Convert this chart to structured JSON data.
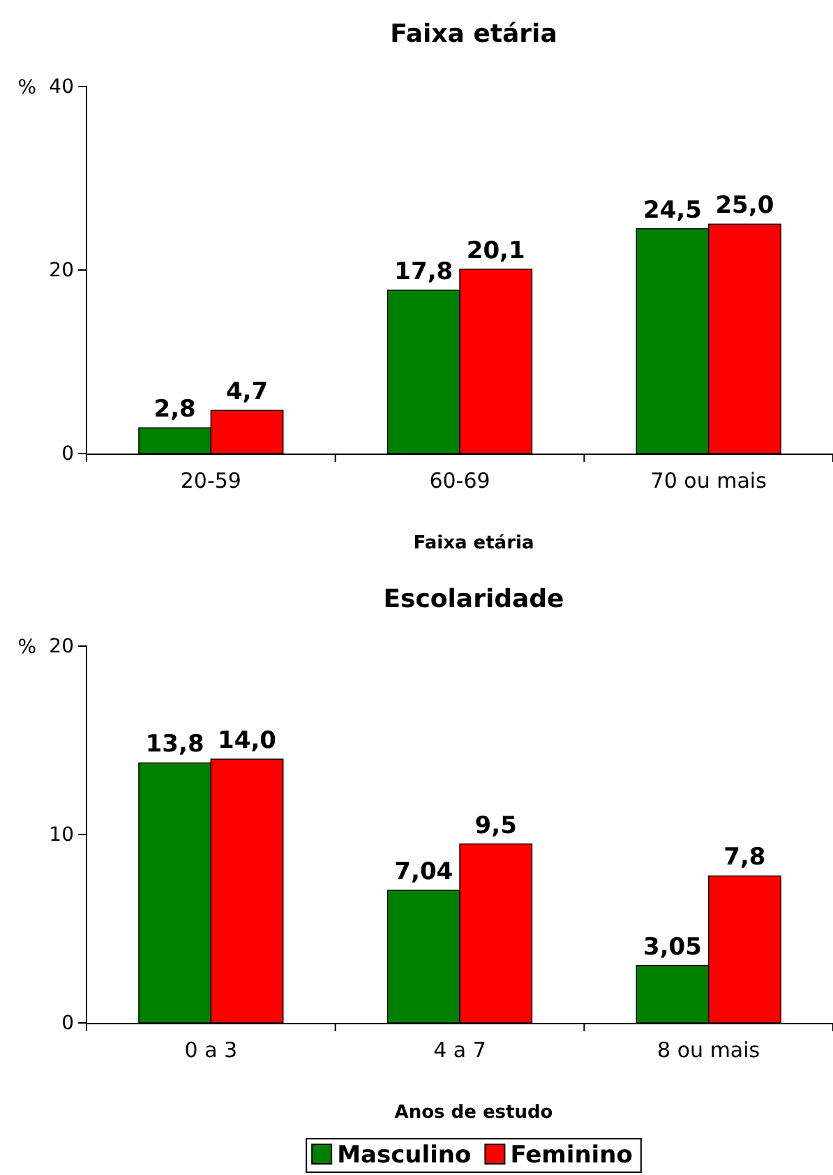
{
  "chart_data": [
    {
      "type": "bar",
      "title": "Faixa etária",
      "xlabel": "Faixa etária",
      "ylabel": "%",
      "categories": [
        "20-59",
        "60-69",
        "70 ou mais"
      ],
      "ylim": [
        0,
        40
      ],
      "yticks": [
        0,
        20,
        40
      ],
      "series": [
        {
          "color": "#008000",
          "values": [
            2.8,
            17.8,
            24.5
          ],
          "value_labels": [
            "2,8",
            "17,8",
            "24,5"
          ]
        },
        {
          "color": "#ff0000",
          "values": [
            4.7,
            20.1,
            25.0
          ],
          "value_labels": [
            "4,7",
            "20,1",
            "25,0"
          ]
        }
      ]
    },
    {
      "type": "bar",
      "title": "Escolaridade",
      "xlabel": "Anos de estudo",
      "ylabel": "%",
      "categories": [
        "0 a 3",
        "4 a 7",
        "8 ou mais"
      ],
      "ylim": [
        0,
        20
      ],
      "yticks": [
        0,
        10,
        20
      ],
      "legend": "bottom",
      "series": [
        {
          "name": "Masculino",
          "color": "#008000",
          "values": [
            13.8,
            7.04,
            3.05
          ],
          "value_labels": [
            "13,8",
            "7,04",
            "3,05"
          ]
        },
        {
          "name": "Feminino",
          "color": "#ff0000",
          "values": [
            14.0,
            9.5,
            7.8
          ],
          "value_labels": [
            "14,0",
            "9,5",
            "7,8"
          ]
        }
      ]
    }
  ]
}
